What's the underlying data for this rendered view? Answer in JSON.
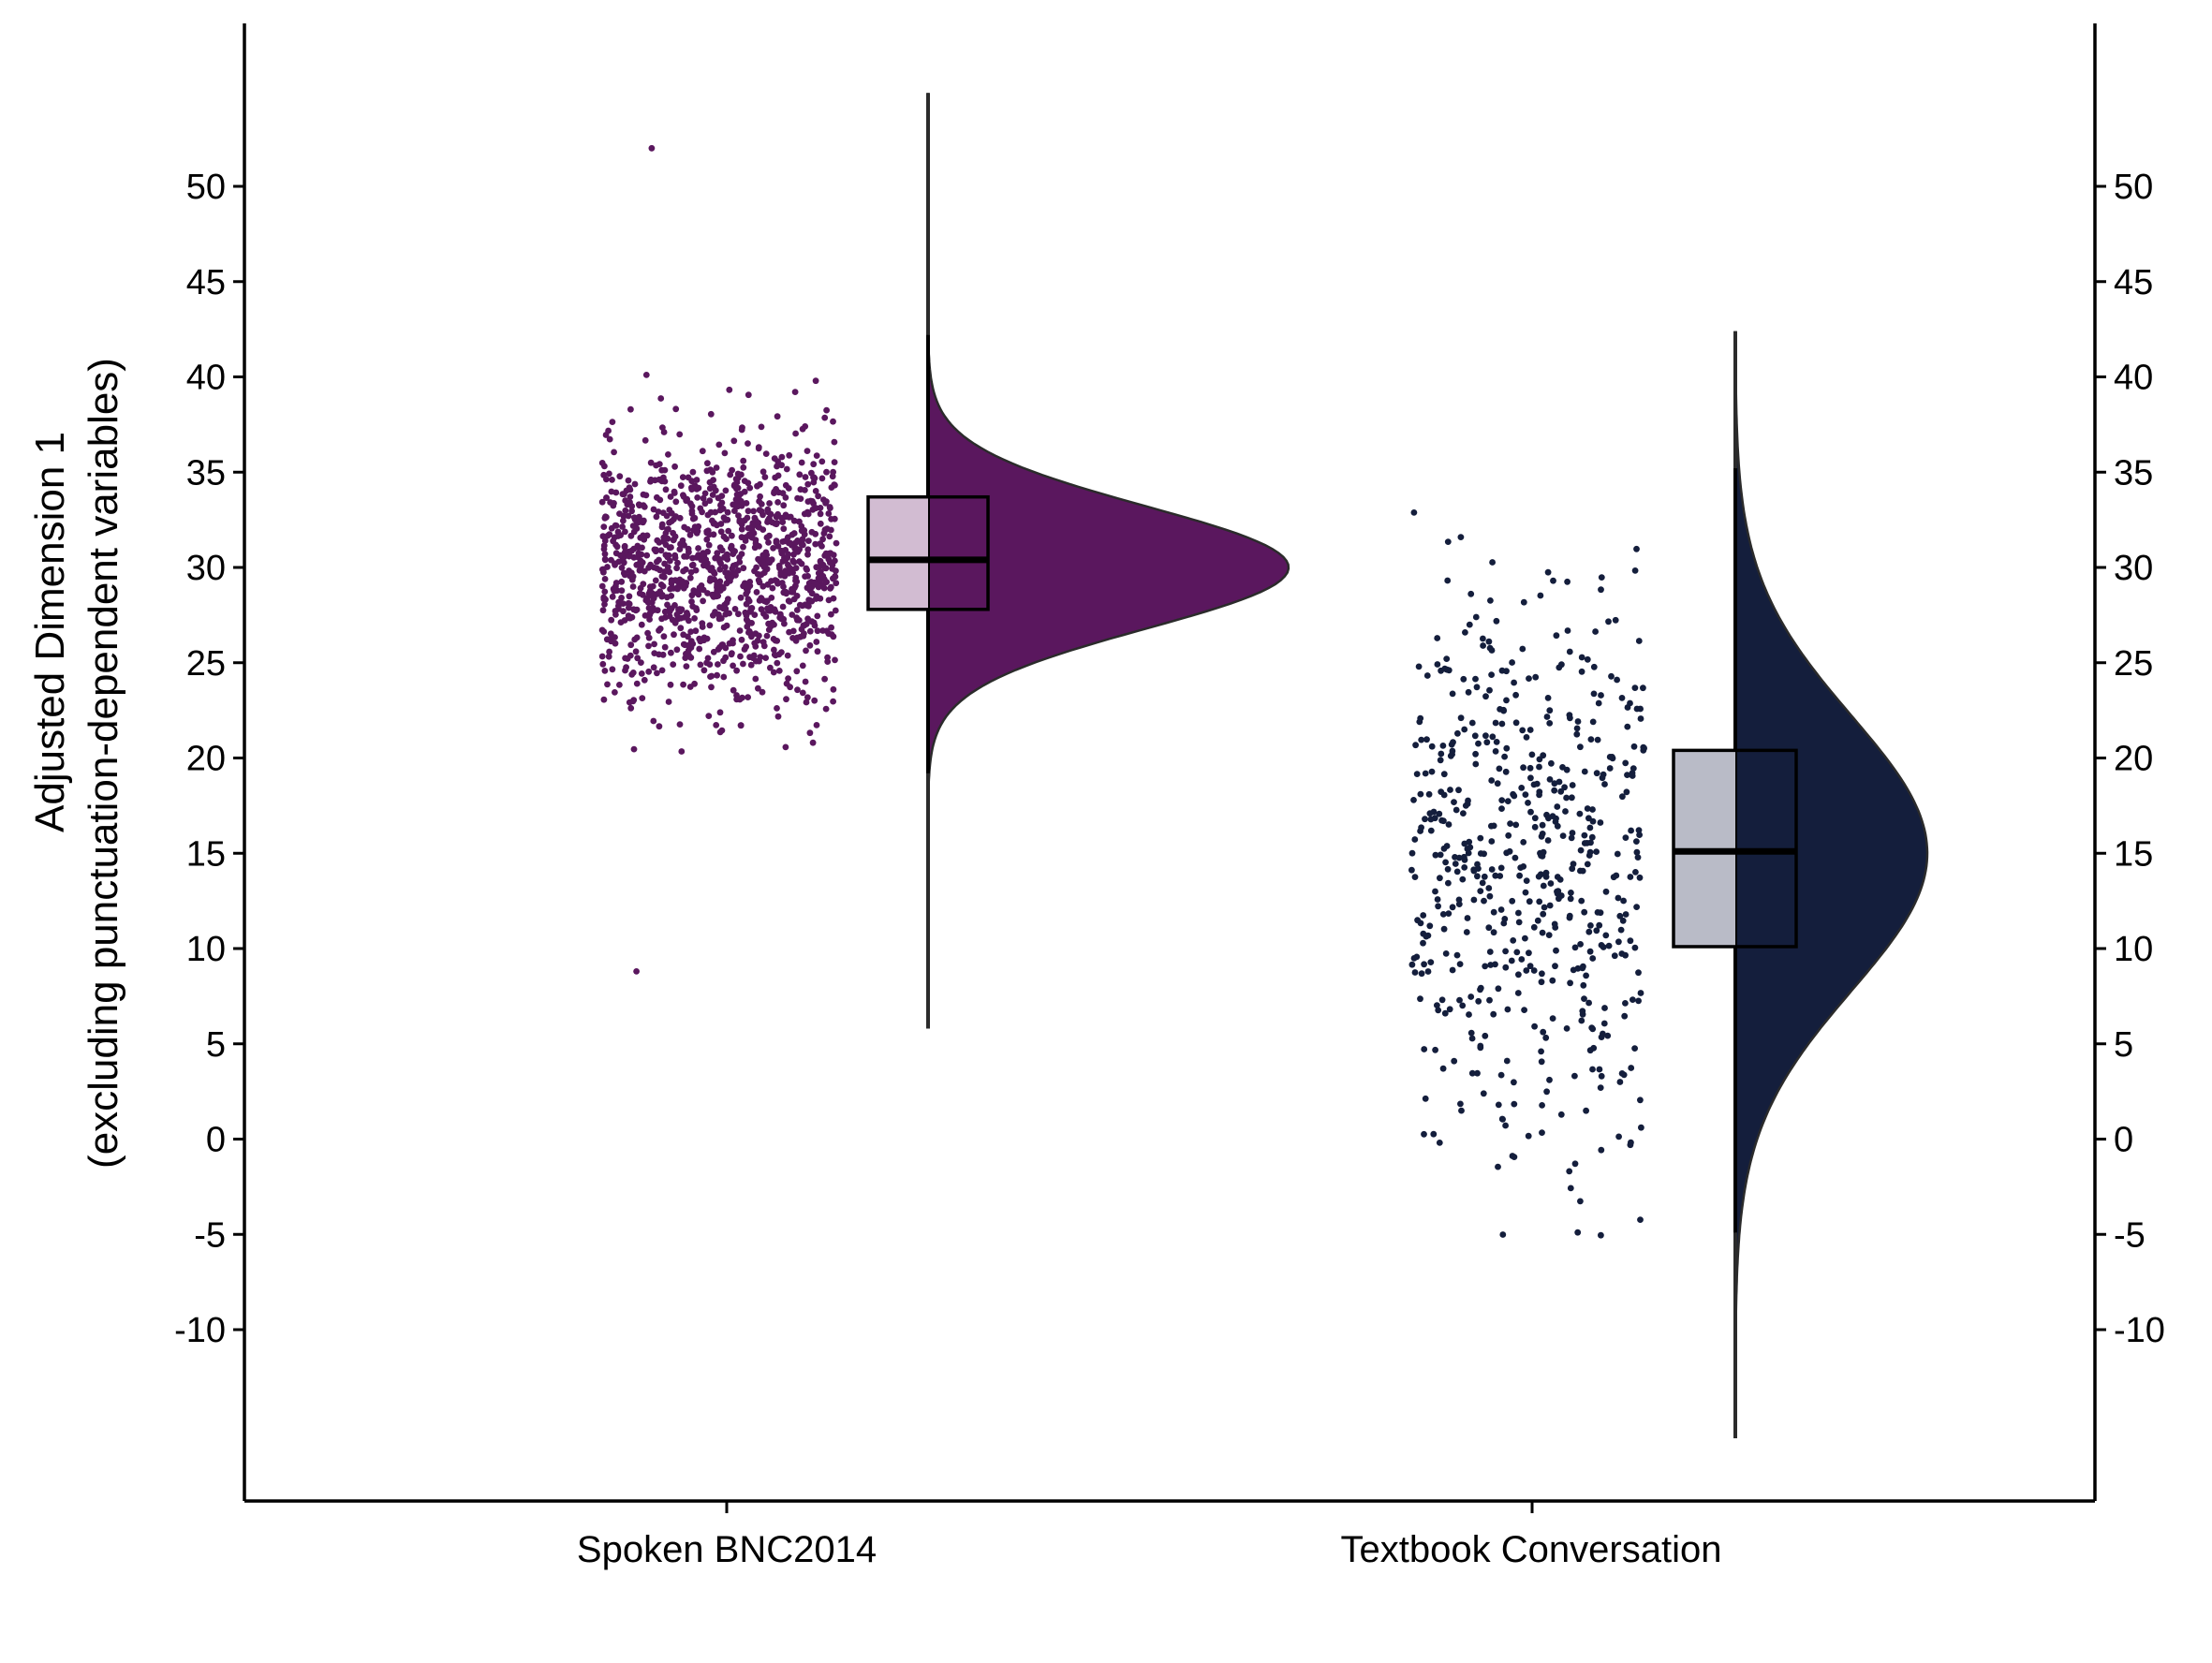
{
  "chart_data": {
    "type": "raincloud",
    "title": "",
    "xlabel": "",
    "ylabel_lines": [
      "Adjusted Dimension 1",
      "(excluding punctuation-dependent variables)"
    ],
    "ylim": [
      -19,
      58
    ],
    "yticks": [
      50,
      45,
      40,
      35,
      30,
      25,
      20,
      15,
      10,
      5,
      0,
      -5,
      -10
    ],
    "yticks_right": true,
    "grid": false,
    "legend": "none",
    "categories": [
      "Spoken BNC2014",
      "Textbook Conversation"
    ],
    "series": [
      {
        "category": "Spoken BNC2014",
        "color": "#5a175e",
        "box_fill": "#d2bcd2",
        "point_count": 1200,
        "box": {
          "q1": 27.8,
          "median": 30.4,
          "q3": 33.7,
          "whisker_low": 19.2,
          "whisker_high": 42.2
        },
        "density_range": [
          5.8,
          54.9
        ],
        "density_peak": 30.0,
        "density_sd": 3.2,
        "points_range": [
          16.6,
          47.2
        ],
        "outliers": [
          52.0,
          8.8
        ]
      },
      {
        "category": "Textbook Conversation",
        "color": "#141e3c",
        "box_fill": "#b9bbc7",
        "point_count": 560,
        "box": {
          "q1": 10.1,
          "median": 15.1,
          "q3": 20.4,
          "whisker_low": -4.9,
          "whisker_high": 35.2
        },
        "density_range": [
          -15.7,
          42.4
        ],
        "density_peak": 15.0,
        "density_sd": 7.2,
        "points_range": [
          -9.6,
          36.5
        ],
        "outliers": []
      }
    ]
  }
}
